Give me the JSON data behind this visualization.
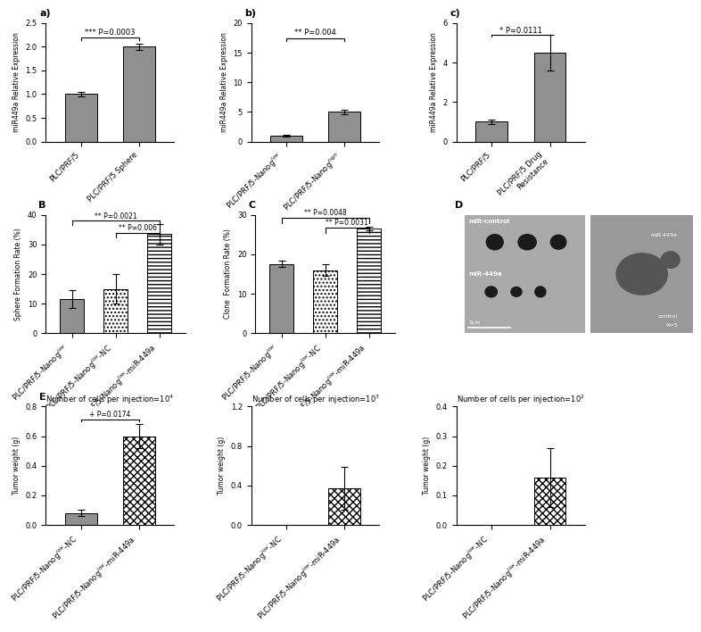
{
  "panel_a": {
    "categories": [
      "PLC/PRF/5",
      "PLC/PRF/5 Sphere"
    ],
    "values": [
      1.0,
      2.0
    ],
    "errors": [
      0.05,
      0.07
    ],
    "ylabel": "miR449a Relative Expression",
    "ylim": [
      0,
      2.5
    ],
    "yticks": [
      0.0,
      0.5,
      1.0,
      1.5,
      2.0,
      2.5
    ],
    "sig_text": "*** P=0.0003",
    "bar_color": [
      "#909090",
      "#909090"
    ]
  },
  "panel_b": {
    "cat_labels": [
      "PLC/PRF/5-Nanog low",
      "PLC/PRF/5-Nanog high"
    ],
    "values": [
      1.0,
      5.0
    ],
    "errors": [
      0.1,
      0.4
    ],
    "ylabel": "miR449a Relative Expression",
    "ylim": [
      0,
      20
    ],
    "yticks": [
      0,
      5,
      10,
      15,
      20
    ],
    "sig_text": "** P=0.004",
    "bar_color": [
      "#909090",
      "#909090"
    ]
  },
  "panel_c": {
    "categories": [
      "PLC/PRF/5",
      "PLC/PRF/5 Drug Resistance"
    ],
    "values": [
      1.0,
      4.5
    ],
    "errors": [
      0.1,
      0.9
    ],
    "ylabel": "miR449a Relative Expression",
    "ylim": [
      0,
      6
    ],
    "yticks": [
      0,
      2,
      4,
      6
    ],
    "sig_text": "* P=0.0111",
    "bar_color": [
      "#909090",
      "#909090"
    ]
  },
  "panel_B": {
    "cat_labels": [
      "PLC/PRF/5-Nanog low",
      "PLC/PRF/5-Nanog low-NC",
      "PLC/PRF/5-Nanog low-miR-449a"
    ],
    "values": [
      11.5,
      15.0,
      33.5
    ],
    "errors": [
      3.0,
      5.0,
      3.5
    ],
    "ylabel": "Sphere Formation Rate (%)",
    "ylim": [
      0,
      40
    ],
    "yticks": [
      0,
      10,
      20,
      30,
      40
    ],
    "sig1_text": "** P=0.0021",
    "sig2_text": "** P=0.006"
  },
  "panel_C": {
    "cat_labels": [
      "PLC/PRF/5-Nanog low",
      "PLC/PRF/5-Nanog low-NC",
      "PLC/PRF/5-Nanog low-miR-449a"
    ],
    "values": [
      17.5,
      16.0,
      26.5
    ],
    "errors": [
      0.8,
      1.5,
      0.5
    ],
    "ylabel": "Clone  Formation Rate (%)",
    "ylim": [
      0,
      30
    ],
    "yticks": [
      0,
      10,
      20,
      30
    ],
    "sig1_text": "** P=0.0048",
    "sig2_text": "** P=0.0031"
  },
  "panel_E1": {
    "title": "Number of cells per injection=10^4",
    "cat_labels": [
      "PLC/PRF/5-Nanog low-NC",
      "PLC/PRF/5-Nanog low-miR-449a"
    ],
    "values": [
      0.08,
      0.6
    ],
    "errors": [
      0.02,
      0.08
    ],
    "ylabel": "Tumor weight (g)",
    "ylim": [
      0,
      0.8
    ],
    "yticks": [
      0.0,
      0.2,
      0.4,
      0.6,
      0.8
    ],
    "sig_text": "+ P=0.0174"
  },
  "panel_E2": {
    "title": "Number of cells per injection=10^3",
    "cat_labels": [
      "PLC/PRF/5-Nanog low-NC",
      "PLC/PRF/5-Nanog low-miR-449a"
    ],
    "values": [
      0.0,
      0.37
    ],
    "errors": [
      0.0,
      0.22
    ],
    "ylabel": "Tumor weight (g)",
    "ylim": [
      0,
      1.2
    ],
    "yticks": [
      0.0,
      0.4,
      0.8,
      1.2
    ]
  },
  "panel_E3": {
    "title": "Number of cells per injection=10^2",
    "cat_labels": [
      "PLC/PRF/5-Nanog low-NC",
      "PLC/PRF/5-Nanog low-miR-449a"
    ],
    "values": [
      0.0,
      0.16
    ],
    "errors": [
      0.0,
      0.1
    ],
    "ylabel": "Tumor weight (g)",
    "ylim": [
      0,
      0.4
    ],
    "yticks": [
      0.0,
      0.1,
      0.2,
      0.3,
      0.4
    ]
  },
  "bar_gray": "#909090",
  "fig_bg": "#ffffff"
}
